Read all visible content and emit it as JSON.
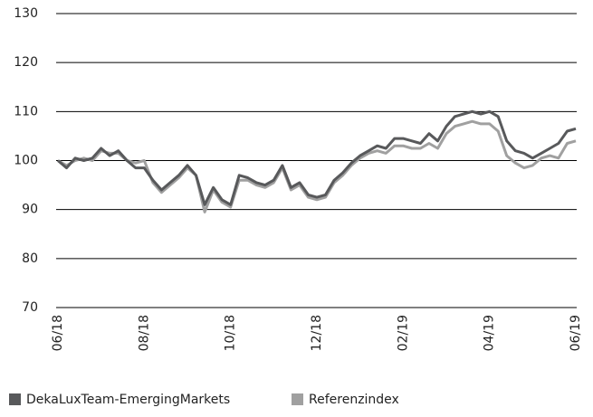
{
  "chart_data": {
    "type": "line",
    "categories": [
      "06/18",
      null,
      null,
      null,
      null,
      null,
      null,
      null,
      null,
      null,
      "08/18",
      null,
      null,
      null,
      null,
      null,
      null,
      null,
      null,
      null,
      "10/18",
      null,
      null,
      null,
      null,
      null,
      null,
      null,
      null,
      null,
      "12/18",
      null,
      null,
      null,
      null,
      null,
      null,
      null,
      null,
      null,
      "02/19",
      null,
      null,
      null,
      null,
      null,
      null,
      null,
      null,
      null,
      "04/19",
      null,
      null,
      null,
      null,
      null,
      null,
      null,
      null,
      null,
      "06/19"
    ],
    "series": [
      {
        "name": "DekaLuxTeam-EmergingMarkets",
        "color": "#58595b",
        "values": [
          100,
          98.5,
          100.5,
          100,
          100.5,
          102.5,
          101,
          102,
          100,
          98.5,
          98.5,
          96,
          94,
          95.5,
          97,
          99,
          97,
          91,
          94.5,
          92,
          91,
          97,
          96.5,
          95.5,
          95,
          96,
          99,
          94.5,
          95.5,
          93,
          92.5,
          93,
          96,
          97.5,
          99.5,
          101,
          102,
          103,
          102.5,
          104.5,
          104.5,
          104,
          103.5,
          105.5,
          104,
          107,
          109,
          109.5,
          110,
          109.5,
          110,
          109,
          104,
          102,
          101.5,
          100.5,
          101.5,
          102.5,
          103.5,
          106,
          106.5
        ]
      },
      {
        "name": "Referenzindex",
        "color": "#a0a0a0",
        "values": [
          100,
          99,
          100,
          100.5,
          100,
          102,
          101.5,
          101.5,
          100,
          99.5,
          100,
          95.5,
          93.5,
          95,
          96.5,
          98.5,
          97,
          89.5,
          94,
          91.5,
          90.5,
          96,
          96,
          95,
          94.5,
          95.5,
          98.5,
          94,
          95,
          92.5,
          92,
          92.5,
          95.5,
          97,
          99,
          100.5,
          101.5,
          102,
          101.5,
          103,
          103,
          102.5,
          102.5,
          103.5,
          102.5,
          105.5,
          107,
          107.5,
          108,
          107.5,
          107.5,
          106,
          101,
          99.5,
          98.5,
          99,
          100.5,
          101,
          100.5,
          103.5,
          104
        ]
      }
    ],
    "ylim": [
      70,
      130
    ],
    "yticks": [
      70,
      80,
      90,
      100,
      110,
      120,
      130
    ],
    "grid": true,
    "legend": "bottom-left"
  }
}
